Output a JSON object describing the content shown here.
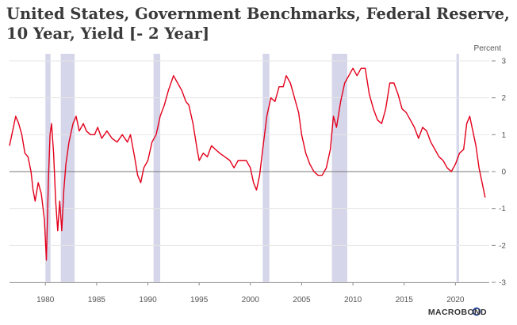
{
  "chart_data": {
    "type": "line",
    "title_lines": [
      "United States, Government Benchmarks, Federal Reserve,",
      "10 Year, Yield [- 2 Year]"
    ],
    "ylabel": "Percent",
    "source_logo": "MACROBOND",
    "ylim": [
      -3,
      3
    ],
    "xlim": [
      1976.5,
      2023.3
    ],
    "xticks": [
      1980,
      1985,
      1990,
      1995,
      2000,
      2005,
      2010,
      2015,
      2020
    ],
    "yticks": [
      3,
      2,
      1,
      0,
      -1,
      -2,
      -3
    ],
    "y_axis_position": "right",
    "grid": "horizontal",
    "zero_line": true,
    "recessions": [
      {
        "start": 1980.0,
        "end": 1980.5
      },
      {
        "start": 1981.5,
        "end": 1982.85
      },
      {
        "start": 1990.55,
        "end": 1991.2
      },
      {
        "start": 2001.2,
        "end": 2001.85
      },
      {
        "start": 2007.95,
        "end": 2009.45
      },
      {
        "start": 2020.1,
        "end": 2020.35
      }
    ],
    "series": [
      {
        "color": "#e3001b",
        "points": [
          [
            1976.5,
            0.7
          ],
          [
            1976.8,
            1.1
          ],
          [
            1977.1,
            1.5
          ],
          [
            1977.4,
            1.3
          ],
          [
            1977.7,
            1.0
          ],
          [
            1978.0,
            0.5
          ],
          [
            1978.3,
            0.4
          ],
          [
            1978.6,
            0.0
          ],
          [
            1978.8,
            -0.5
          ],
          [
            1979.0,
            -0.8
          ],
          [
            1979.3,
            -0.3
          ],
          [
            1979.6,
            -0.6
          ],
          [
            1979.9,
            -1.3
          ],
          [
            1980.1,
            -2.4
          ],
          [
            1980.3,
            -0.2
          ],
          [
            1980.45,
            1.0
          ],
          [
            1980.6,
            1.3
          ],
          [
            1980.8,
            0.5
          ],
          [
            1981.0,
            -0.8
          ],
          [
            1981.2,
            -1.6
          ],
          [
            1981.4,
            -0.8
          ],
          [
            1981.6,
            -1.6
          ],
          [
            1981.8,
            -0.5
          ],
          [
            1982.0,
            0.2
          ],
          [
            1982.3,
            0.8
          ],
          [
            1982.7,
            1.3
          ],
          [
            1983.0,
            1.5
          ],
          [
            1983.3,
            1.1
          ],
          [
            1983.7,
            1.3
          ],
          [
            1984.0,
            1.1
          ],
          [
            1984.4,
            1.0
          ],
          [
            1984.8,
            1.0
          ],
          [
            1985.1,
            1.2
          ],
          [
            1985.5,
            0.9
          ],
          [
            1986.0,
            1.1
          ],
          [
            1986.5,
            0.9
          ],
          [
            1987.0,
            0.8
          ],
          [
            1987.5,
            1.0
          ],
          [
            1988.0,
            0.8
          ],
          [
            1988.3,
            1.0
          ],
          [
            1988.7,
            0.4
          ],
          [
            1989.0,
            -0.1
          ],
          [
            1989.3,
            -0.3
          ],
          [
            1989.6,
            0.1
          ],
          [
            1990.0,
            0.3
          ],
          [
            1990.4,
            0.8
          ],
          [
            1990.8,
            1.0
          ],
          [
            1991.2,
            1.5
          ],
          [
            1991.6,
            1.8
          ],
          [
            1992.0,
            2.2
          ],
          [
            1992.5,
            2.6
          ],
          [
            1992.9,
            2.4
          ],
          [
            1993.3,
            2.2
          ],
          [
            1993.7,
            1.9
          ],
          [
            1994.0,
            1.8
          ],
          [
            1994.4,
            1.3
          ],
          [
            1994.8,
            0.6
          ],
          [
            1995.0,
            0.3
          ],
          [
            1995.4,
            0.5
          ],
          [
            1995.8,
            0.4
          ],
          [
            1996.2,
            0.7
          ],
          [
            1996.6,
            0.6
          ],
          [
            1997.0,
            0.5
          ],
          [
            1997.5,
            0.4
          ],
          [
            1998.0,
            0.3
          ],
          [
            1998.4,
            0.1
          ],
          [
            1998.8,
            0.3
          ],
          [
            1999.2,
            0.3
          ],
          [
            1999.6,
            0.3
          ],
          [
            2000.0,
            0.1
          ],
          [
            2000.3,
            -0.3
          ],
          [
            2000.6,
            -0.5
          ],
          [
            2000.9,
            -0.1
          ],
          [
            2001.2,
            0.6
          ],
          [
            2001.6,
            1.5
          ],
          [
            2002.0,
            2.0
          ],
          [
            2002.4,
            1.9
          ],
          [
            2002.8,
            2.3
          ],
          [
            2003.2,
            2.3
          ],
          [
            2003.5,
            2.6
          ],
          [
            2003.9,
            2.4
          ],
          [
            2004.3,
            2.0
          ],
          [
            2004.7,
            1.6
          ],
          [
            2005.0,
            1.0
          ],
          [
            2005.4,
            0.5
          ],
          [
            2005.8,
            0.2
          ],
          [
            2006.2,
            0.0
          ],
          [
            2006.6,
            -0.1
          ],
          [
            2007.0,
            -0.1
          ],
          [
            2007.4,
            0.1
          ],
          [
            2007.8,
            0.6
          ],
          [
            2008.1,
            1.5
          ],
          [
            2008.4,
            1.2
          ],
          [
            2008.8,
            1.9
          ],
          [
            2009.2,
            2.4
          ],
          [
            2009.6,
            2.6
          ],
          [
            2010.0,
            2.8
          ],
          [
            2010.4,
            2.6
          ],
          [
            2010.8,
            2.8
          ],
          [
            2011.2,
            2.8
          ],
          [
            2011.6,
            2.1
          ],
          [
            2012.0,
            1.7
          ],
          [
            2012.4,
            1.4
          ],
          [
            2012.8,
            1.3
          ],
          [
            2013.2,
            1.7
          ],
          [
            2013.6,
            2.4
          ],
          [
            2014.0,
            2.4
          ],
          [
            2014.4,
            2.1
          ],
          [
            2014.8,
            1.7
          ],
          [
            2015.2,
            1.6
          ],
          [
            2015.6,
            1.4
          ],
          [
            2016.0,
            1.2
          ],
          [
            2016.4,
            0.9
          ],
          [
            2016.8,
            1.2
          ],
          [
            2017.2,
            1.1
          ],
          [
            2017.6,
            0.8
          ],
          [
            2018.0,
            0.6
          ],
          [
            2018.4,
            0.4
          ],
          [
            2018.8,
            0.3
          ],
          [
            2019.2,
            0.1
          ],
          [
            2019.6,
            0.0
          ],
          [
            2020.0,
            0.2
          ],
          [
            2020.4,
            0.5
          ],
          [
            2020.8,
            0.6
          ],
          [
            2021.1,
            1.3
          ],
          [
            2021.4,
            1.5
          ],
          [
            2021.7,
            1.1
          ],
          [
            2022.0,
            0.7
          ],
          [
            2022.3,
            0.1
          ],
          [
            2022.6,
            -0.3
          ],
          [
            2022.9,
            -0.7
          ]
        ]
      }
    ]
  }
}
